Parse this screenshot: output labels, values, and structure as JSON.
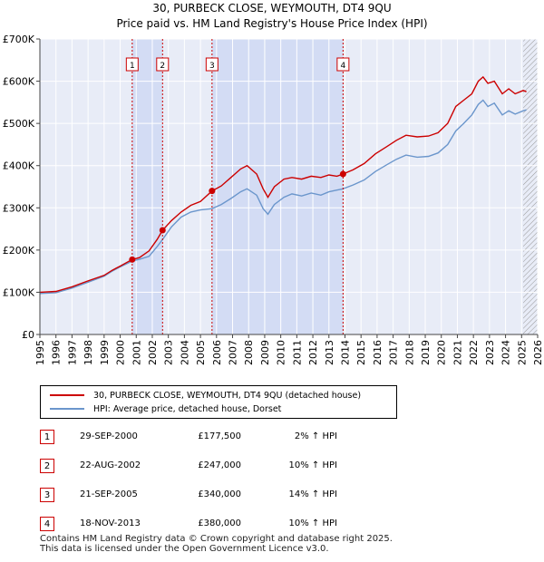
{
  "title_line1": "30, PURBECK CLOSE, WEYMOUTH, DT4 9QU",
  "title_line2": "Price paid vs. HM Land Registry's House Price Index (HPI)",
  "chart_data": {
    "type": "line",
    "y_tick_labels": [
      "£0",
      "£100K",
      "£200K",
      "£300K",
      "£400K",
      "£500K",
      "£600K",
      "£700K"
    ],
    "y_tick_values": [
      0,
      100000,
      200000,
      300000,
      400000,
      500000,
      600000,
      700000
    ],
    "ylim": [
      0,
      700000
    ],
    "xlim": [
      1995,
      2026
    ],
    "x_tick_labels": [
      "1995",
      "1996",
      "1997",
      "1998",
      "1999",
      "2000",
      "2001",
      "2002",
      "2003",
      "2004",
      "2005",
      "2006",
      "2007",
      "2008",
      "2009",
      "2010",
      "2011",
      "2012",
      "2013",
      "2014",
      "2015",
      "2016",
      "2017",
      "2018",
      "2019",
      "2020",
      "2021",
      "2022",
      "2023",
      "2024",
      "2025",
      "2026"
    ],
    "shaded_periods": [
      [
        2000.75,
        2002.64
      ],
      [
        2005.72,
        2013.88
      ]
    ],
    "future_hatch_from": 2025.1,
    "series": [
      {
        "name": "30, PURBECK CLOSE, WEYMOUTH, DT4 9QU (detached house)",
        "color": "#cc0000",
        "x": [
          1995.0,
          1996.0,
          1997.0,
          1998.0,
          1999.0,
          1999.5,
          2000.0,
          2000.75,
          2001.2,
          2001.8,
          2002.3,
          2002.64,
          2003.2,
          2003.8,
          2004.4,
          2005.0,
          2005.72,
          2006.3,
          2006.9,
          2007.5,
          2007.9,
          2008.5,
          2008.9,
          2009.2,
          2009.6,
          2010.2,
          2010.7,
          2011.3,
          2011.9,
          2012.5,
          2013.0,
          2013.5,
          2013.88,
          2014.5,
          2015.2,
          2015.9,
          2016.6,
          2017.2,
          2017.8,
          2018.5,
          2019.2,
          2019.8,
          2020.4,
          2020.9,
          2021.4,
          2021.9,
          2022.3,
          2022.6,
          2022.9,
          2023.3,
          2023.8,
          2024.2,
          2024.6,
          2025.1,
          2025.3
        ],
        "y": [
          100000,
          102000,
          113000,
          127000,
          140000,
          152000,
          162000,
          177500,
          182000,
          198000,
          225000,
          247000,
          270000,
          290000,
          306000,
          315000,
          340000,
          352000,
          372000,
          392000,
          400000,
          380000,
          345000,
          325000,
          350000,
          368000,
          372000,
          368000,
          375000,
          372000,
          378000,
          375000,
          380000,
          390000,
          405000,
          428000,
          445000,
          460000,
          472000,
          468000,
          470000,
          478000,
          500000,
          540000,
          555000,
          570000,
          600000,
          610000,
          595000,
          600000,
          570000,
          582000,
          570000,
          578000,
          575000
        ]
      },
      {
        "name": "HPI: Average price, detached house, Dorset",
        "color": "#6b96cc",
        "x": [
          1995.0,
          1996.0,
          1997.0,
          1998.0,
          1999.0,
          1999.5,
          2000.0,
          2000.75,
          2001.2,
          2001.8,
          2002.3,
          2002.64,
          2003.2,
          2003.8,
          2004.4,
          2005.0,
          2005.72,
          2006.3,
          2006.9,
          2007.5,
          2007.9,
          2008.5,
          2008.9,
          2009.2,
          2009.6,
          2010.2,
          2010.7,
          2011.3,
          2011.9,
          2012.5,
          2013.0,
          2013.5,
          2013.88,
          2014.5,
          2015.2,
          2015.9,
          2016.6,
          2017.2,
          2017.8,
          2018.5,
          2019.2,
          2019.8,
          2020.4,
          2020.9,
          2021.4,
          2021.9,
          2022.3,
          2022.6,
          2022.9,
          2023.3,
          2023.8,
          2024.2,
          2024.6,
          2025.1,
          2025.3
        ],
        "y": [
          97000,
          99000,
          110000,
          124000,
          138000,
          150000,
          160000,
          174000,
          178000,
          185000,
          208000,
          225000,
          255000,
          278000,
          290000,
          295000,
          298000,
          308000,
          322000,
          338000,
          345000,
          330000,
          298000,
          285000,
          308000,
          325000,
          333000,
          328000,
          335000,
          330000,
          338000,
          342000,
          345000,
          354000,
          366000,
          386000,
          402000,
          415000,
          425000,
          420000,
          422000,
          430000,
          450000,
          482000,
          500000,
          520000,
          545000,
          555000,
          540000,
          548000,
          520000,
          530000,
          522000,
          530000,
          532000
        ]
      }
    ],
    "sales": [
      {
        "num": "1",
        "x": 2000.75,
        "price": 177500
      },
      {
        "num": "2",
        "x": 2002.64,
        "price": 247000
      },
      {
        "num": "3",
        "x": 2005.72,
        "price": 340000
      },
      {
        "num": "4",
        "x": 2013.88,
        "price": 380000
      }
    ]
  },
  "legend": {
    "line1": "30, PURBECK CLOSE, WEYMOUTH, DT4 9QU (detached house)",
    "line2": "HPI: Average price, detached house, Dorset",
    "color1": "#cc0000",
    "color2": "#6b96cc"
  },
  "sales_table": [
    {
      "num": "1",
      "date": "29-SEP-2000",
      "price": "£177,500",
      "hpi": "2% ↑ HPI"
    },
    {
      "num": "2",
      "date": "22-AUG-2002",
      "price": "£247,000",
      "hpi": "10% ↑ HPI"
    },
    {
      "num": "3",
      "date": "21-SEP-2005",
      "price": "£340,000",
      "hpi": "14% ↑ HPI"
    },
    {
      "num": "4",
      "date": "18-NOV-2013",
      "price": "£380,000",
      "hpi": "10% ↑ HPI"
    }
  ],
  "footer_line1": "Contains HM Land Registry data © Crown copyright and database right 2025.",
  "footer_line2": "This data is licensed under the Open Government Licence v3.0."
}
